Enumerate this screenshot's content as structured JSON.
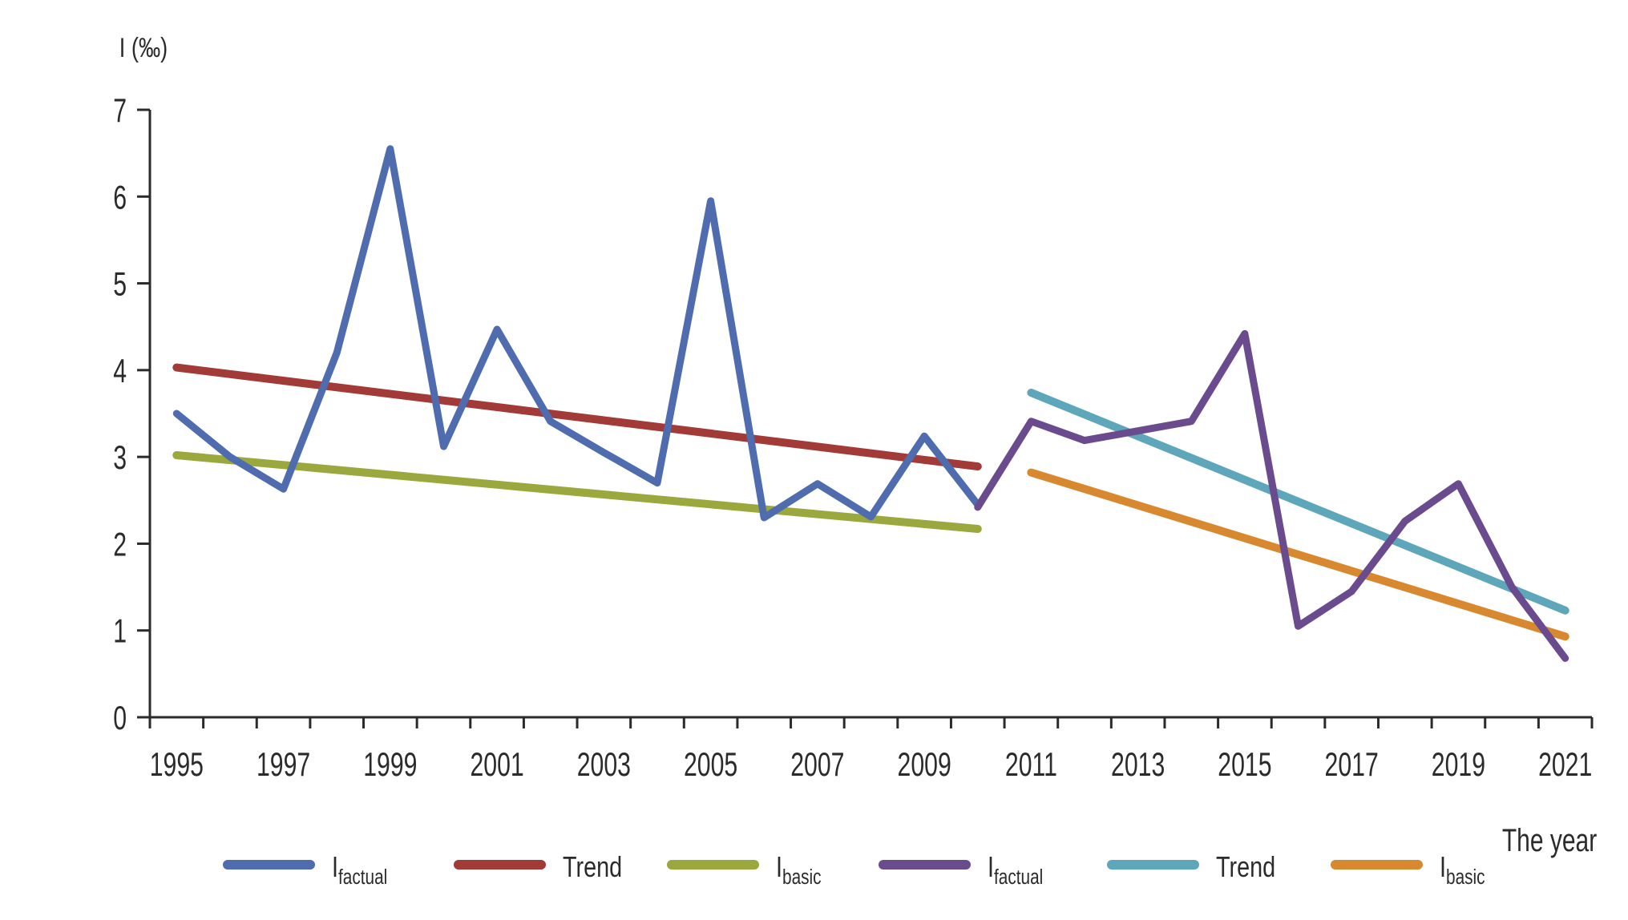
{
  "y_axis_title": "I (‰)",
  "x_axis_title": "The year",
  "axis_color": "#2b2b2b",
  "background": "#ffffff",
  "chart_data": {
    "type": "line",
    "title": "",
    "xlabel": "The year",
    "ylabel": "I (‰)",
    "ylim": [
      0,
      7
    ],
    "grid": false,
    "legend_position": "bottom",
    "y_ticks": [
      0,
      1,
      2,
      3,
      4,
      5,
      6,
      7
    ],
    "x_range_years": [
      1995,
      2021
    ],
    "x_tick_labels": [
      1995,
      1997,
      1999,
      2001,
      2003,
      2005,
      2007,
      2009,
      2011,
      2013,
      2015,
      2017,
      2019,
      2021
    ],
    "series": [
      {
        "id": "factual-1995-2010",
        "legend_main": "I",
        "legend_sub": "factual",
        "kind": "data",
        "color": "#4e6cae",
        "years": [
          1995,
          1996,
          1997,
          1998,
          1999,
          2000,
          2001,
          2002,
          2003,
          2004,
          2005,
          2006,
          2007,
          2008,
          2009,
          2010
        ],
        "values": [
          3.5,
          3.0,
          2.63,
          4.2,
          6.55,
          3.12,
          4.47,
          3.41,
          3.05,
          2.7,
          5.95,
          2.3,
          2.69,
          2.31,
          3.24,
          2.45
        ]
      },
      {
        "id": "trend-1995-2010",
        "legend_main": "Trend",
        "legend_sub": "",
        "kind": "trend",
        "color": "#a23b38",
        "years": [
          1995,
          2010
        ],
        "values": [
          4.03,
          2.89
        ]
      },
      {
        "id": "basic-1995-2010",
        "legend_main": "I",
        "legend_sub": "basic",
        "kind": "trend",
        "color": "#9aa83e",
        "years": [
          1995,
          2010
        ],
        "values": [
          3.02,
          2.17
        ]
      },
      {
        "id": "factual-2010-2021",
        "legend_main": "I",
        "legend_sub": "factual",
        "kind": "data",
        "color": "#6a4b8e",
        "years": [
          2010,
          2011,
          2012,
          2013,
          2014,
          2015,
          2016,
          2017,
          2018,
          2019,
          2020,
          2021
        ],
        "values": [
          2.42,
          3.41,
          3.19,
          3.3,
          3.41,
          4.42,
          1.05,
          1.45,
          2.26,
          2.69,
          1.5,
          0.68
        ]
      },
      {
        "id": "trend-2011-2021",
        "legend_main": "Trend",
        "legend_sub": "",
        "kind": "trend",
        "color": "#5ea7ba",
        "years": [
          2011,
          2021
        ],
        "values": [
          3.74,
          1.23
        ]
      },
      {
        "id": "basic-2011-2021",
        "legend_main": "I",
        "legend_sub": "basic",
        "kind": "trend",
        "color": "#d8882e",
        "years": [
          2011,
          2021
        ],
        "values": [
          2.82,
          0.93
        ]
      }
    ]
  }
}
